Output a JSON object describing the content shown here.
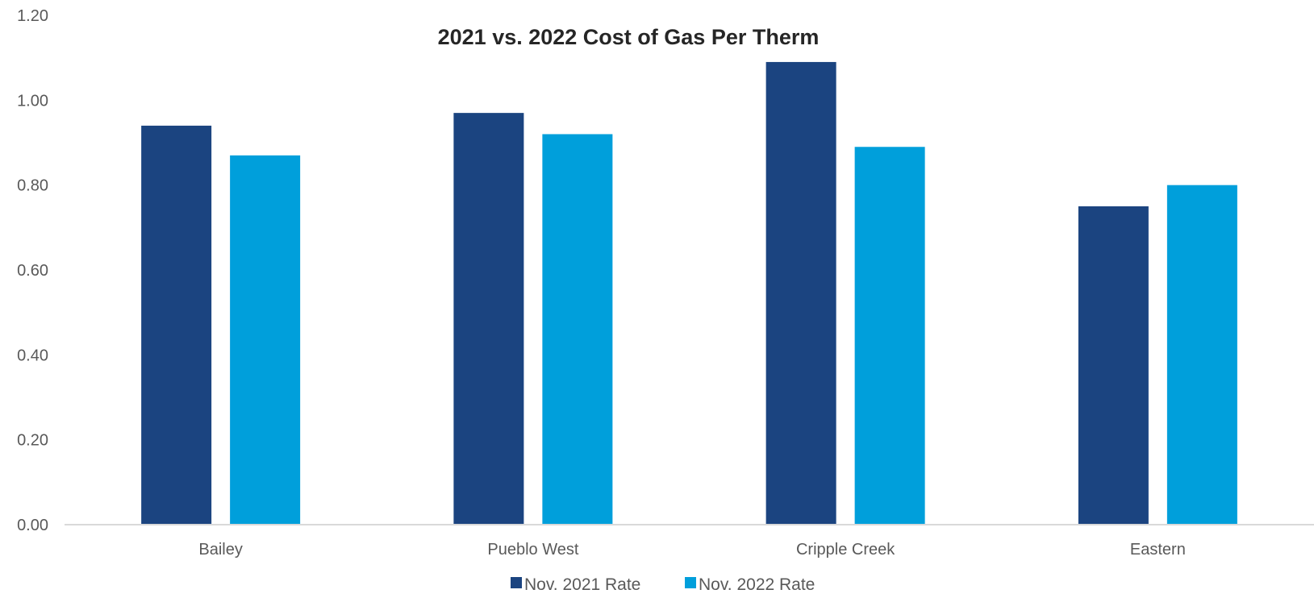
{
  "chart_data": {
    "type": "bar",
    "title": "2021 vs. 2022 Cost of Gas Per Therm",
    "xlabel": "",
    "ylabel": "",
    "categories": [
      "Bailey",
      "Pueblo West",
      "Cripple Creek",
      "Eastern"
    ],
    "series": [
      {
        "name": "Nov. 2021 Rate",
        "values": [
          0.94,
          0.97,
          1.09,
          0.75
        ],
        "color": "#1B4480"
      },
      {
        "name": "Nov. 2022 Rate",
        "values": [
          0.87,
          0.92,
          0.89,
          0.8
        ],
        "color": "#009FDB"
      }
    ],
    "ylim": [
      0,
      1.2
    ],
    "yticks": [
      "0.00",
      "0.20",
      "0.40",
      "0.60",
      "0.80",
      "1.00",
      "1.20"
    ],
    "grid": false,
    "legend_position": "bottom"
  }
}
